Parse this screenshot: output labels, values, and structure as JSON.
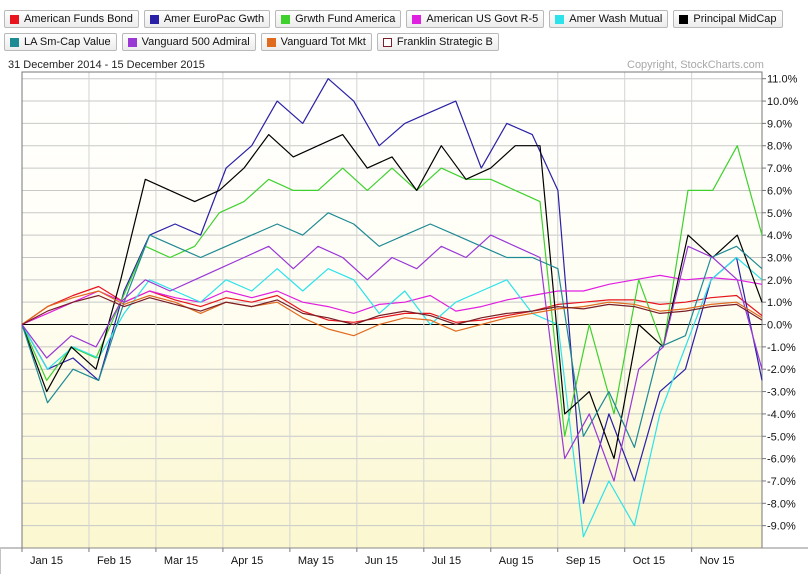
{
  "chart_data": {
    "type": "line",
    "date_range": "31 December 2014 - 15 December 2015",
    "copyright": "Copyright, StockCharts.com",
    "x_labels": [
      "Jan 15",
      "Feb 15",
      "Mar 15",
      "Apr 15",
      "May 15",
      "Jun 15",
      "Jul 15",
      "Aug 15",
      "Sep 15",
      "Oct 15",
      "Nov 15"
    ],
    "y_labels": [
      "11.0%",
      "10.0%",
      "9.0%",
      "8.0%",
      "7.0%",
      "6.0%",
      "5.0%",
      "4.0%",
      "3.0%",
      "2.0%",
      "1.0%",
      "0.0%",
      "-1.0%",
      "-2.0%",
      "-3.0%",
      "-4.0%",
      "-5.0%",
      "-6.0%",
      "-7.0%",
      "-8.0%",
      "-9.0%"
    ],
    "ylim": [
      -10,
      11.3
    ],
    "grid": true,
    "legend_placement": "top",
    "series": [
      {
        "name": "American Funds Bond",
        "color": "#e8141e",
        "values": [
          0,
          0.8,
          1.3,
          1.7,
          1.0,
          1.5,
          1.1,
          0.8,
          1.2,
          1.0,
          1.3,
          0.6,
          0.2,
          0.1,
          0.3,
          0.5,
          0.5,
          0.1,
          0.2,
          0.4,
          0.6,
          0.9,
          1.0,
          1.1,
          1.1,
          0.9,
          1.0,
          1.2,
          1.3,
          0.4
        ]
      },
      {
        "name": "Amer EuroPac Gwth",
        "color": "#2a20a8",
        "values": [
          0,
          -2.0,
          -1.5,
          -2.5,
          1.5,
          4.0,
          4.5,
          4.0,
          7.0,
          8.0,
          10.0,
          9.0,
          11.0,
          10.0,
          8.0,
          9.0,
          9.5,
          10.0,
          7.0,
          9.0,
          8.5,
          6.0,
          -8.0,
          -4.0,
          -7.0,
          -3.0,
          -2.0,
          2.0,
          3.0,
          -2.5
        ]
      },
      {
        "name": "Grwth Fund America",
        "color": "#3ed12e",
        "values": [
          0,
          -2.5,
          -1.0,
          -1.5,
          1.0,
          3.5,
          3.0,
          3.5,
          5.0,
          5.5,
          6.5,
          6.0,
          6.0,
          7.0,
          6.0,
          7.0,
          6.0,
          7.0,
          6.5,
          6.5,
          6.0,
          5.5,
          -5.0,
          0.0,
          -4.0,
          2.0,
          -1.0,
          6.0,
          6.0,
          8.0,
          4.0
        ]
      },
      {
        "name": "American US Govt R-5",
        "color": "#e020e0",
        "values": [
          0,
          0.5,
          1.0,
          1.5,
          1.0,
          1.5,
          1.2,
          1.0,
          1.5,
          1.2,
          1.5,
          1.0,
          0.8,
          0.5,
          0.9,
          1.0,
          1.3,
          0.6,
          0.8,
          1.1,
          1.3,
          1.5,
          1.5,
          1.8,
          2.0,
          2.2,
          2.0,
          2.1,
          2.0,
          1.8
        ]
      },
      {
        "name": "Amer Wash Mutual",
        "color": "#2de2ea",
        "values": [
          0,
          -2.0,
          -1.0,
          -1.5,
          0.5,
          2.0,
          1.5,
          1.0,
          2.0,
          1.5,
          2.5,
          1.5,
          2.5,
          2.0,
          0.5,
          1.5,
          0.0,
          1.0,
          1.5,
          2.0,
          0.5,
          0.0,
          -9.5,
          -7.0,
          -9.0,
          -4.0,
          -1.0,
          2.0,
          3.0,
          2.0
        ]
      },
      {
        "name": "Principal MidCap",
        "color": "#000000",
        "values": [
          0,
          -3.0,
          -1.0,
          -2.0,
          2.0,
          6.5,
          6.0,
          5.5,
          6.0,
          7.0,
          8.5,
          7.5,
          8.0,
          8.5,
          7.0,
          7.5,
          6.0,
          8.0,
          6.5,
          7.0,
          8.0,
          8.0,
          -4.0,
          -3.0,
          -6.0,
          0.0,
          -1.0,
          4.0,
          3.0,
          4.0,
          1.0
        ]
      },
      {
        "name": "LA Sm-Cap Value",
        "color": "#1e8a94",
        "values": [
          0,
          -3.5,
          -2.0,
          -2.5,
          1.0,
          4.0,
          3.5,
          3.0,
          3.5,
          4.0,
          4.5,
          4.0,
          5.0,
          4.5,
          3.5,
          4.0,
          4.5,
          4.0,
          3.5,
          3.0,
          3.0,
          2.5,
          -5.0,
          -3.0,
          -5.5,
          -1.0,
          -0.5,
          3.0,
          3.5,
          2.5
        ]
      },
      {
        "name": "Vanguard 500 Admiral",
        "color": "#9a38d6",
        "values": [
          0,
          -1.5,
          -0.5,
          -1.0,
          1.0,
          2.0,
          1.5,
          2.0,
          2.5,
          3.0,
          3.5,
          2.5,
          3.5,
          3.0,
          2.0,
          3.0,
          2.5,
          3.5,
          3.0,
          4.0,
          3.5,
          3.0,
          -6.0,
          -4.0,
          -7.0,
          -2.0,
          -1.0,
          3.5,
          3.0,
          2.0,
          -2.0
        ]
      },
      {
        "name": "Vanguard Tot Mkt",
        "color": "#e06a1e",
        "values": [
          0,
          0.8,
          1.2,
          1.5,
          0.9,
          1.3,
          1.0,
          0.5,
          1.0,
          0.8,
          1.0,
          0.3,
          -0.2,
          -0.5,
          0.0,
          0.3,
          0.2,
          -0.3,
          0.0,
          0.3,
          0.5,
          0.7,
          0.8,
          1.0,
          0.9,
          0.6,
          0.7,
          0.9,
          1.0,
          0.3
        ]
      },
      {
        "name": "Franklin Strategic B",
        "color": "#7a1e28",
        "values": [
          0,
          0.6,
          1.0,
          1.3,
          0.8,
          1.2,
          0.9,
          0.6,
          1.0,
          0.8,
          1.1,
          0.5,
          0.3,
          0.0,
          0.4,
          0.6,
          0.4,
          0.0,
          0.3,
          0.5,
          0.6,
          0.8,
          0.7,
          0.9,
          0.8,
          0.5,
          0.6,
          0.8,
          0.9,
          0.2
        ]
      }
    ]
  }
}
